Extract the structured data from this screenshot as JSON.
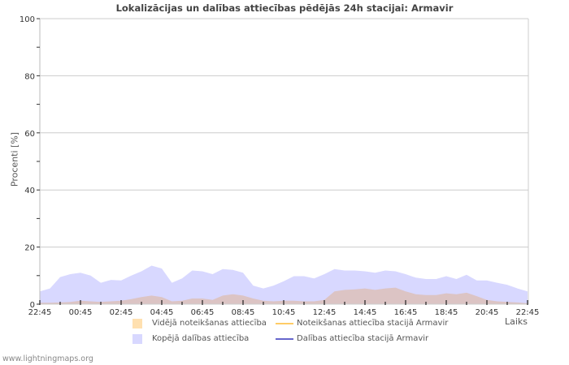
{
  "chart_data": {
    "type": "area",
    "title": "Lokalizācijas un dalības attiecības pēdējās 24h stacijai: Armavir",
    "xlabel": "Laiks",
    "ylabel": "Procenti   [%]",
    "ylim": [
      0,
      100
    ],
    "yticks": [
      0,
      20,
      40,
      60,
      80,
      100
    ],
    "xtick_labels": [
      "22:45",
      "00:45",
      "02:45",
      "04:45",
      "06:45",
      "08:45",
      "10:45",
      "12:45",
      "14:45",
      "16:45",
      "18:45",
      "20:45",
      "22:45"
    ],
    "grid": true,
    "legend_position": "bottom",
    "x": [
      "22:45",
      "23:15",
      "23:45",
      "00:15",
      "00:45",
      "01:15",
      "01:45",
      "02:15",
      "02:45",
      "03:15",
      "03:45",
      "04:15",
      "04:45",
      "05:15",
      "05:45",
      "06:15",
      "06:45",
      "07:15",
      "07:45",
      "08:15",
      "08:45",
      "09:15",
      "09:45",
      "10:15",
      "10:45",
      "11:15",
      "11:45",
      "12:15",
      "12:45",
      "13:15",
      "13:45",
      "14:15",
      "14:45",
      "15:15",
      "15:45",
      "16:15",
      "16:45",
      "17:15",
      "17:45",
      "18:15",
      "18:45",
      "19:15",
      "19:45",
      "20:15",
      "20:45",
      "21:15",
      "21:45",
      "22:15",
      "22:45"
    ],
    "series": [
      {
        "name": "Kopējā dalības attiecība",
        "color": "#d8d8ff",
        "values": [
          4.5,
          5.5,
          9.5,
          10.5,
          11,
          10,
          7.5,
          8.5,
          8.3,
          10,
          11.5,
          13.5,
          12.5,
          7.5,
          9,
          11.8,
          11.5,
          10.5,
          12.3,
          12,
          11,
          6.5,
          5.5,
          6.5,
          8,
          9.8,
          9.8,
          9,
          10.5,
          12.3,
          11.8,
          11.8,
          11.5,
          11,
          11.8,
          11.5,
          10.5,
          9.3,
          8.8,
          8.8,
          9.8,
          8.8,
          10.3,
          8.3,
          8.3,
          7.5,
          6.8,
          5.5,
          4.5
        ]
      },
      {
        "name": "Vidējā noteikšanas attiecība",
        "color": "#ffe0b0",
        "values": [
          0.5,
          0.5,
          0.6,
          0.8,
          1.2,
          1.0,
          0.8,
          1.0,
          1.2,
          1.8,
          2.5,
          3.0,
          2.5,
          1.0,
          1.2,
          2.0,
          2.0,
          1.5,
          3.0,
          3.5,
          3.0,
          2.0,
          1.2,
          1.0,
          1.2,
          1.2,
          1.0,
          1.0,
          1.5,
          4.5,
          5.0,
          5.2,
          5.5,
          5.0,
          5.5,
          5.8,
          4.5,
          3.5,
          3.2,
          3.2,
          3.8,
          3.5,
          4.0,
          2.8,
          1.5,
          1.0,
          0.8,
          0.6,
          0.3
        ]
      },
      {
        "name": "Noteikšanas attiecība stacijā Armavir",
        "color": "#ffcc66",
        "values": []
      },
      {
        "name": "Dalības attiecība stacijā Armavir",
        "color": "#6666cc",
        "values": []
      }
    ]
  },
  "page": {
    "title": "Lokalizācijas un dalības attiecības pēdējās 24h stacijai: Armavir",
    "ylabel": "Procenti   [%]",
    "xlabel": "Laiks",
    "footer": "www.lightningmaps.org",
    "legend": {
      "avg_detection": "Vidējā noteikšanas attiecība",
      "station_detection": "Noteikšanas attiecība stacijā Armavir",
      "total_participation": "Kopējā dalības attiecība",
      "station_participation": "Dalības attiecība stacijā Armavir"
    },
    "colors": {
      "avg_detection": "#ffe0b0",
      "station_detection": "#ffcc66",
      "total_participation": "#d8d8ff",
      "station_participation": "#6666cc",
      "overlap": "#dcc4c4",
      "grid": "#cccccc"
    }
  }
}
